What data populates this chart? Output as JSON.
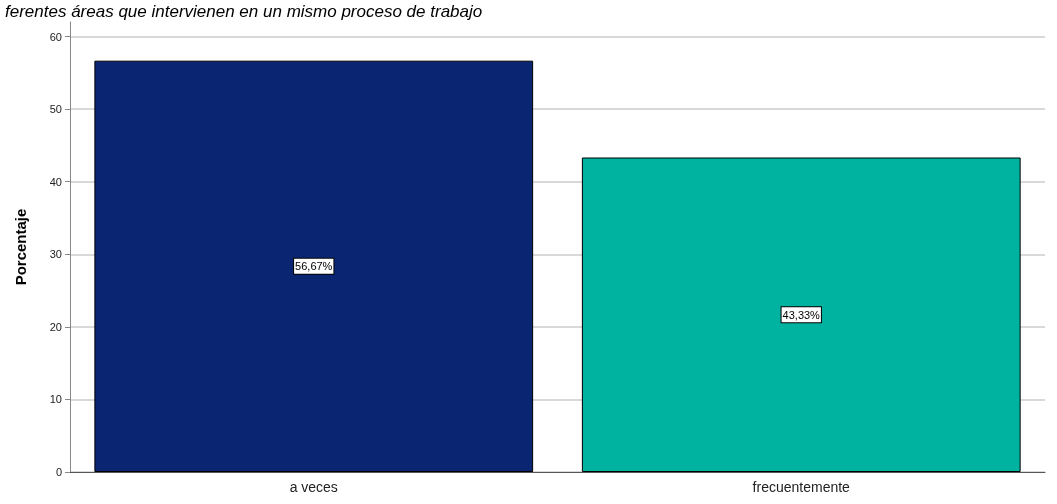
{
  "chart_data": {
    "type": "bar",
    "title": "ferentes áreas que intervienen en un mismo proceso de trabajo",
    "ylabel": "Porcentaje",
    "categories": [
      "a veces",
      "frecuentemente"
    ],
    "values": [
      56.67,
      43.33
    ],
    "colors": [
      "#0a2672",
      "#00b2a0"
    ],
    "value_labels": [
      "56,67%",
      "43,33%"
    ],
    "ylim": [
      0,
      62
    ],
    "yticks": [
      0,
      10,
      20,
      30,
      40,
      50,
      60
    ],
    "grid": "y"
  }
}
